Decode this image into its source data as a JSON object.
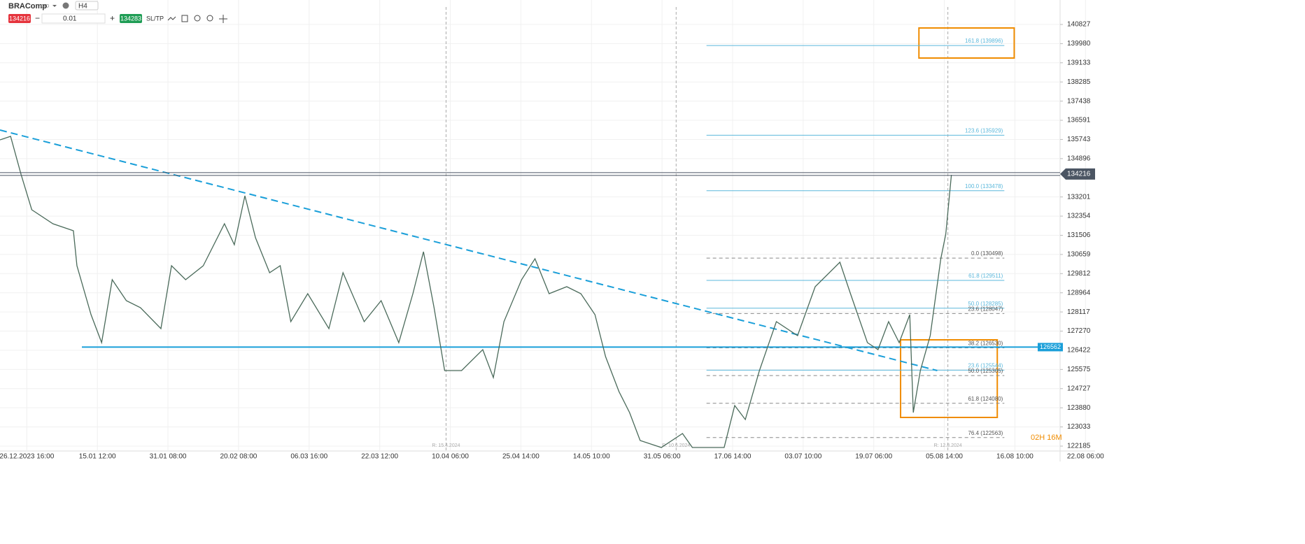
{
  "toolbar": {
    "symbol": "BRAComp",
    "kind": "CFD",
    "interval": "H4",
    "sell": "134216",
    "volume": "0.01",
    "buy": "134283",
    "sltp": "SL/TP"
  },
  "chart_data": {
    "type": "line",
    "xlim": [
      -0.38,
      14.64
    ],
    "ylim": [
      121969,
      141909
    ],
    "x_labels": [
      "26.12.2023 16:00",
      "15.01 12:00",
      "31.01 08:00",
      "20.02 08:00",
      "06.03 16:00",
      "22.03 12:00",
      "10.04 06:00",
      "25.04 14:00",
      "14.05 10:00",
      "31.05 06:00",
      "17.06 14:00",
      "03.07 10:00",
      "19.07 06:00",
      "05.08 14:00",
      "16.08 10:00",
      "22.08 06:00"
    ],
    "yticks": [
      140827,
      139980,
      139133,
      138285,
      137438,
      136591,
      135743,
      134896,
      133201,
      132354,
      131506,
      130659,
      129812,
      128964,
      128117,
      127270,
      126422,
      125575,
      124727,
      123880,
      123033,
      122185
    ],
    "price": {
      "color": "#4a6a5a",
      "x": [
        -0.38,
        -0.23,
        -0.08,
        0.07,
        0.37,
        0.66,
        0.71,
        0.91,
        1.06,
        1.21,
        1.41,
        1.61,
        1.9,
        2.05,
        2.25,
        2.5,
        2.8,
        2.94,
        3.09,
        3.24,
        3.44,
        3.59,
        3.74,
        3.98,
        4.28,
        4.48,
        4.78,
        5.02,
        5.27,
        5.47,
        5.62,
        5.77,
        5.92,
        6.16,
        6.46,
        6.61,
        6.76,
        7.01,
        7.2,
        7.4,
        7.65,
        7.85,
        8.05,
        8.2,
        8.39,
        8.54,
        8.69,
        8.99,
        9.29,
        9.43,
        9.88,
        10.03,
        10.18,
        10.38,
        10.62,
        10.92,
        11.17,
        11.52,
        11.67,
        11.91,
        12.06,
        12.21,
        12.36,
        12.51,
        12.56,
        12.66,
        12.8,
        12.95,
        13.02,
        13.1
      ],
      "values": [
        135726,
        135881,
        134180,
        132635,
        132016,
        131707,
        130161,
        127997,
        126761,
        129543,
        128616,
        128306,
        127379,
        130161,
        129543,
        130161,
        132016,
        131089,
        133253,
        131398,
        129852,
        130161,
        127688,
        128925,
        127379,
        129852,
        127688,
        128616,
        126761,
        128925,
        130780,
        128306,
        125524,
        125524,
        126452,
        125215,
        127688,
        129543,
        130470,
        128925,
        129234,
        128925,
        127997,
        126142,
        124597,
        123669,
        122433,
        122123,
        122742,
        122123,
        122123,
        123978,
        123360,
        125524,
        127688,
        127070,
        129234,
        130316,
        128925,
        126761,
        126452,
        127688,
        126761,
        127997,
        123669,
        125524,
        127070,
        130470,
        131552,
        134180
      ]
    },
    "current_price": {
      "value": 134216,
      "label": "134216",
      "color": "#4b5563"
    },
    "support": {
      "value": 126562,
      "label": "126562",
      "x_start": 0.78,
      "color": "#1a9fd9"
    },
    "trendline": {
      "x": [
        -0.38,
        12.9
      ],
      "values": [
        136159,
        125525
      ],
      "color": "#1a9fd9"
    },
    "fib_x": [
      9.63,
      13.85
    ],
    "fib_levels": [
      {
        "label": "161.8 (139896)",
        "value": 139896,
        "style": "solid"
      },
      {
        "label": "123.6 (135929)",
        "value": 135929,
        "style": "solid"
      },
      {
        "label": "100.0 (133478)",
        "value": 133478,
        "style": "solid"
      },
      {
        "label": "0.0 (130498)",
        "value": 130498,
        "style": "dashed"
      },
      {
        "label": "61.8 (129511)",
        "value": 129511,
        "style": "solid"
      },
      {
        "label": "50.0 (128285)",
        "value": 128285,
        "style": "solid"
      },
      {
        "label": "23.6 (128047)",
        "value": 128047,
        "style": "dashed"
      },
      {
        "label": "38.2 (126530)",
        "value": 126530,
        "style": "dashed"
      },
      {
        "label": "23.6 (125544)",
        "value": 125544,
        "style": "solid"
      },
      {
        "label": "50.0 (125305)",
        "value": 125305,
        "style": "dashed"
      },
      {
        "label": "61.8 (124080)",
        "value": 124080,
        "style": "dashed"
      },
      {
        "label": "76.4 (122563)",
        "value": 122563,
        "style": "dashed"
      }
    ],
    "boxes": [
      {
        "x": [
          12.64,
          13.99
        ],
        "values": [
          140672,
          139343
        ],
        "color": "#f08c00"
      },
      {
        "x": [
          12.38,
          13.75
        ],
        "values": [
          126884,
          123453
        ],
        "color": "#f08c00"
      }
    ],
    "rollovers": [
      {
        "x": 5.94,
        "label": "R: 15.4.2024"
      },
      {
        "x": 9.2,
        "label": "R: 10.6.2024"
      },
      {
        "x": 13.05,
        "label": "R: 12.8.2024"
      }
    ],
    "countdown": "02H 16M"
  }
}
